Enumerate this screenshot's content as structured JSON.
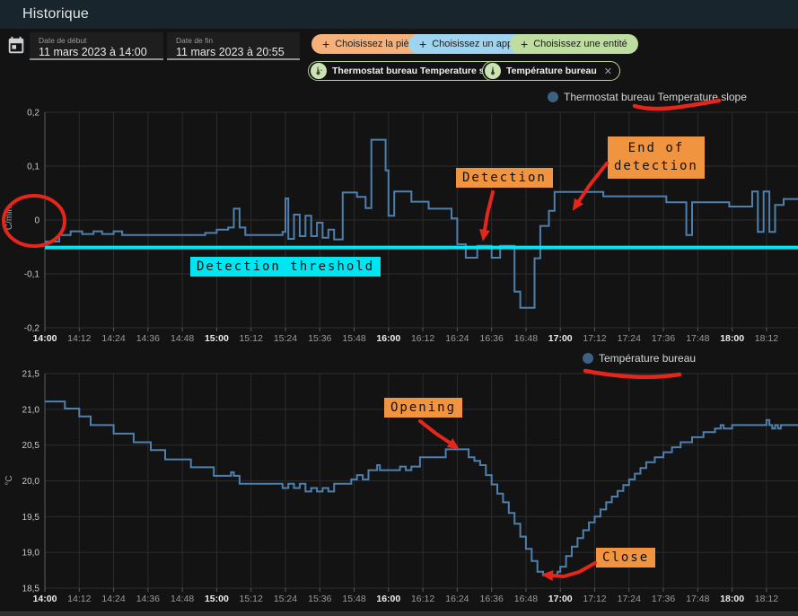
{
  "header": {
    "title": "Historique"
  },
  "toolbar": {
    "start_date": {
      "label": "Date de début",
      "value": "11 mars 2023 à 14:00"
    },
    "end_date": {
      "label": "Date de fin",
      "value": "11 mars 2023 à 20:55"
    },
    "pickers": {
      "area": {
        "label": "Choisissez la pièce",
        "color": "#f5b179"
      },
      "device": {
        "label": "Choisissez un appareil",
        "color": "#9fd4f0"
      },
      "entity": {
        "label": "Choisissez une entité",
        "color": "#bedda1"
      }
    },
    "plus_icon": "+",
    "close_icon": "✕",
    "chips": [
      {
        "label": "Thermostat bureau Temperature slope"
      },
      {
        "label": "Température bureau"
      }
    ]
  },
  "annotations": {
    "ink_color": "#e5261b",
    "highlight_color": "#f09440",
    "threshold_color": "#00e5f2",
    "detection": {
      "label": "Detection"
    },
    "end_of_detection": {
      "label": "End of\ndetection"
    },
    "detection_threshold": {
      "label": "Detection threshold"
    },
    "opening": {
      "label": "Opening"
    },
    "close": {
      "label": "Close"
    }
  },
  "chart_data": [
    {
      "id": "temperature_slope",
      "type": "line",
      "step": true,
      "legend": "Thermostat bureau Temperature slope",
      "legend_color": "#3c6183",
      "ylabel": "°C/min",
      "ylim": [
        -0.2,
        0.2
      ],
      "yticks": [
        {
          "value": 0.2,
          "label": "0,2"
        },
        {
          "value": 0.1,
          "label": "0,1"
        },
        {
          "value": 0,
          "label": "0"
        },
        {
          "value": -0.1,
          "label": "-0,1"
        },
        {
          "value": -0.2,
          "label": "-0,2"
        }
      ],
      "x_labels": [
        "14:00",
        "14:12",
        "14:24",
        "14:36",
        "14:48",
        "15:00",
        "15:12",
        "15:24",
        "15:36",
        "15:48",
        "16:00",
        "16:12",
        "16:24",
        "16:36",
        "16:48",
        "17:00",
        "17:12",
        "17:24",
        "17:36",
        "17:48",
        "18:00",
        "18:12"
      ],
      "x_tick_minutes": 12,
      "x_end_min": 263,
      "threshold": {
        "value": -0.051,
        "color": "#00e5f2",
        "label": "Detection threshold"
      },
      "series": {
        "name": "Thermostat bureau Temperature slope",
        "color": "#4e80ae",
        "points": [
          [
            0,
            -0.04
          ],
          [
            5,
            -0.028
          ],
          [
            9,
            -0.021
          ],
          [
            13,
            -0.026
          ],
          [
            17,
            -0.021
          ],
          [
            20,
            -0.026
          ],
          [
            24,
            -0.021
          ],
          [
            27,
            -0.028
          ],
          [
            56,
            -0.024
          ],
          [
            60,
            -0.018
          ],
          [
            64,
            -0.014
          ],
          [
            66,
            0.021
          ],
          [
            68,
            -0.014
          ],
          [
            70,
            -0.028
          ],
          [
            83,
            -0.022
          ],
          [
            84,
            0.04
          ],
          [
            85,
            -0.035
          ],
          [
            87,
            0.01
          ],
          [
            89,
            -0.03
          ],
          [
            91,
            0.008
          ],
          [
            93,
            -0.03
          ],
          [
            95,
            -0.005
          ],
          [
            97,
            -0.033
          ],
          [
            99,
            -0.018
          ],
          [
            101,
            -0.036
          ],
          [
            104,
            0.051
          ],
          [
            109,
            0.043
          ],
          [
            112,
            0.022
          ],
          [
            114,
            0.149
          ],
          [
            119,
            0.092
          ],
          [
            120,
            0.008
          ],
          [
            122,
            0.053
          ],
          [
            128,
            0.034
          ],
          [
            134,
            0.021
          ],
          [
            142,
            0.003
          ],
          [
            144,
            -0.045
          ],
          [
            147,
            -0.07
          ],
          [
            151,
            -0.048
          ],
          [
            156,
            -0.07
          ],
          [
            159,
            -0.048
          ],
          [
            164,
            -0.133
          ],
          [
            166,
            -0.163
          ],
          [
            171,
            -0.071
          ],
          [
            173,
            -0.011
          ],
          [
            176,
            0.017
          ],
          [
            178,
            0.052
          ],
          [
            195,
            0.044
          ],
          [
            217,
            0.033
          ],
          [
            224,
            -0.028
          ],
          [
            226,
            0.033
          ],
          [
            239,
            0.025
          ],
          [
            247,
            0.053
          ],
          [
            249,
            -0.022
          ],
          [
            251,
            0.053
          ],
          [
            253,
            -0.022
          ],
          [
            255,
            0.028
          ],
          [
            258,
            0.039
          ]
        ]
      }
    },
    {
      "id": "temperature",
      "type": "line",
      "step": true,
      "legend": "Température bureau",
      "legend_color": "#3c6183",
      "ylabel": "°C",
      "ylim": [
        18.5,
        21.5
      ],
      "yticks": [
        {
          "value": 21.5,
          "label": "21,5"
        },
        {
          "value": 21.0,
          "label": "21,0"
        },
        {
          "value": 20.5,
          "label": "20,5"
        },
        {
          "value": 20.0,
          "label": "20,0"
        },
        {
          "value": 19.5,
          "label": "19,5"
        },
        {
          "value": 19.0,
          "label": "19,0"
        },
        {
          "value": 18.5,
          "label": "18,5"
        }
      ],
      "x_labels": [
        "14:00",
        "14:12",
        "14:24",
        "14:36",
        "14:48",
        "15:00",
        "15:12",
        "15:24",
        "15:36",
        "15:48",
        "16:00",
        "16:12",
        "16:24",
        "16:36",
        "16:48",
        "17:00",
        "17:12",
        "17:24",
        "17:36",
        "17:48",
        "18:00",
        "18:12"
      ],
      "x_tick_minutes": 12,
      "x_end_min": 263,
      "series": {
        "name": "Température bureau",
        "color": "#4e80ae",
        "points": [
          [
            0,
            21.11
          ],
          [
            7,
            21.01
          ],
          [
            12,
            20.9
          ],
          [
            16,
            20.78
          ],
          [
            24,
            20.66
          ],
          [
            31,
            20.54
          ],
          [
            37,
            20.43
          ],
          [
            42,
            20.3
          ],
          [
            51,
            20.19
          ],
          [
            59,
            20.07
          ],
          [
            65,
            20.12
          ],
          [
            66,
            20.07
          ],
          [
            68,
            19.96
          ],
          [
            83,
            19.9
          ],
          [
            85,
            19.96
          ],
          [
            87,
            19.9
          ],
          [
            89,
            19.96
          ],
          [
            91,
            19.85
          ],
          [
            93,
            19.9
          ],
          [
            95,
            19.85
          ],
          [
            97,
            19.9
          ],
          [
            99,
            19.85
          ],
          [
            101,
            19.96
          ],
          [
            107,
            20.02
          ],
          [
            109,
            20.08
          ],
          [
            111,
            20.02
          ],
          [
            113,
            20.15
          ],
          [
            116,
            20.22
          ],
          [
            117,
            20.15
          ],
          [
            124,
            20.2
          ],
          [
            126,
            20.15
          ],
          [
            128,
            20.2
          ],
          [
            131,
            20.33
          ],
          [
            140,
            20.44
          ],
          [
            148,
            20.33
          ],
          [
            150,
            20.28
          ],
          [
            152,
            20.22
          ],
          [
            154,
            20.08
          ],
          [
            156,
            19.95
          ],
          [
            158,
            19.82
          ],
          [
            160,
            19.7
          ],
          [
            162,
            19.55
          ],
          [
            164,
            19.4
          ],
          [
            166,
            19.22
          ],
          [
            168,
            19.05
          ],
          [
            170,
            18.88
          ],
          [
            172,
            18.73
          ],
          [
            174,
            18.68
          ],
          [
            179,
            18.73
          ],
          [
            180,
            18.8
          ],
          [
            182,
            18.95
          ],
          [
            184,
            19.08
          ],
          [
            186,
            19.2
          ],
          [
            188,
            19.31
          ],
          [
            190,
            19.42
          ],
          [
            192,
            19.5
          ],
          [
            194,
            19.6
          ],
          [
            196,
            19.7
          ],
          [
            198,
            19.78
          ],
          [
            200,
            19.86
          ],
          [
            202,
            19.94
          ],
          [
            204,
            20.02
          ],
          [
            206,
            20.1
          ],
          [
            208,
            20.18
          ],
          [
            210,
            20.26
          ],
          [
            213,
            20.33
          ],
          [
            216,
            20.4
          ],
          [
            219,
            20.47
          ],
          [
            222,
            20.54
          ],
          [
            226,
            20.61
          ],
          [
            230,
            20.68
          ],
          [
            234,
            20.73
          ],
          [
            236,
            20.78
          ],
          [
            237,
            20.73
          ],
          [
            240,
            20.78
          ],
          [
            252,
            20.85
          ],
          [
            253,
            20.78
          ],
          [
            254,
            20.73
          ],
          [
            255,
            20.78
          ],
          [
            256,
            20.73
          ],
          [
            257,
            20.78
          ]
        ]
      }
    }
  ]
}
